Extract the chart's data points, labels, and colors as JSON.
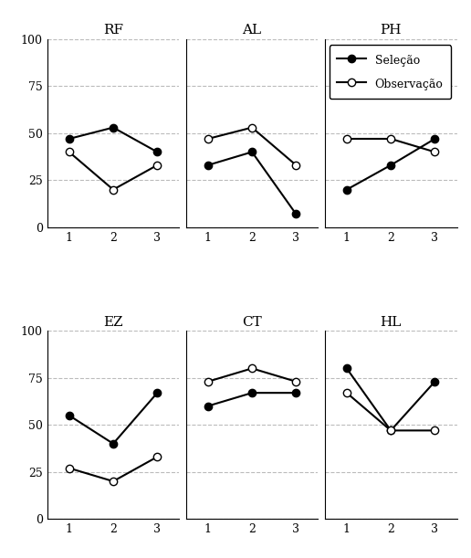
{
  "subplots": [
    {
      "title": "RF",
      "selecao": [
        47,
        53,
        40
      ],
      "observacao": [
        40,
        20,
        33
      ]
    },
    {
      "title": "AL",
      "selecao": [
        33,
        40,
        7
      ],
      "observacao": [
        47,
        53,
        33
      ]
    },
    {
      "title": "PH",
      "selecao": [
        20,
        33,
        47
      ],
      "observacao": [
        47,
        47,
        40
      ]
    },
    {
      "title": "EZ",
      "selecao": [
        55,
        40,
        67
      ],
      "observacao": [
        27,
        20,
        33
      ]
    },
    {
      "title": "CT",
      "selecao": [
        60,
        67,
        67
      ],
      "observacao": [
        73,
        80,
        73
      ]
    },
    {
      "title": "HL",
      "selecao": [
        80,
        47,
        73
      ],
      "observacao": [
        67,
        47,
        47
      ]
    }
  ],
  "x": [
    1,
    2,
    3
  ],
  "ylim": [
    0,
    100
  ],
  "yticks": [
    0,
    25,
    50,
    75,
    100
  ],
  "xticks": [
    1,
    2,
    3
  ],
  "legend_labels": [
    "Seleção",
    "Observação"
  ],
  "selecao_color": "black",
  "observacao_color": "black",
  "grid_color": "#bbbbbb",
  "background_color": "white",
  "title_fontsize": 11,
  "tick_fontsize": 9,
  "legend_fontsize": 9,
  "markersize": 6,
  "linewidth": 1.5
}
